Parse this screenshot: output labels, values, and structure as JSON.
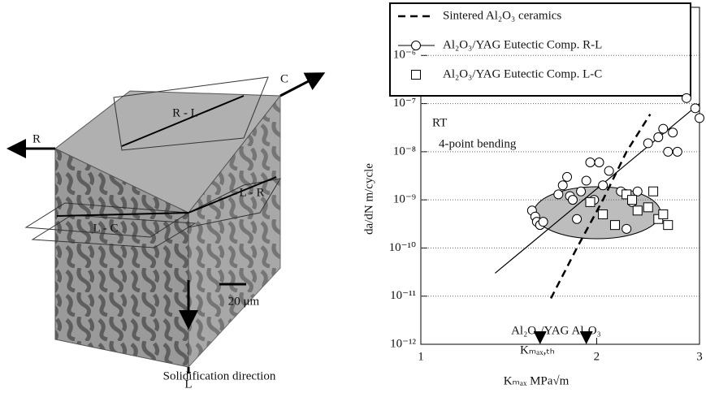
{
  "chart_data": {
    "type": "scatter",
    "xlabel": "Kₘₐₓ MPa√m",
    "ylabel": "da/dN    m/cycle",
    "log_x": true,
    "log_y": true,
    "xlim": [
      1,
      3
    ],
    "ylim": [
      1e-12,
      1e-05
    ],
    "xticks": [
      1,
      2,
      3
    ],
    "yticks": [
      {
        "value": 1e-12,
        "label": "10⁻¹²"
      },
      {
        "value": 1e-11,
        "label": "10⁻¹¹"
      },
      {
        "value": 1e-10,
        "label": "10⁻¹⁰"
      },
      {
        "value": 1e-09,
        "label": "10⁻⁹"
      },
      {
        "value": 1e-08,
        "label": "10⁻⁸"
      },
      {
        "value": 1e-07,
        "label": "10⁻⁷"
      },
      {
        "value": 1e-06,
        "label": "10⁻⁶"
      }
    ],
    "grid": "y",
    "legend": "top",
    "series": [
      {
        "name": "Sintered Al₂O₃ ceramics",
        "style": "dashed",
        "color": "#000000",
        "x": [
          1.67,
          1.85,
          2.05,
          2.25,
          2.47
        ],
        "values": [
          9e-12,
          1e-10,
          1e-09,
          1e-08,
          6e-08
        ]
      },
      {
        "name": "Al₂O₃/YAG  Eutectic  Comp. R-L",
        "style": "circle",
        "color": "#000000",
        "x": [
          1.55,
          1.57,
          1.58,
          1.6,
          1.62,
          1.72,
          1.75,
          1.78,
          1.8,
          1.82,
          1.85,
          1.88,
          1.92,
          1.95,
          1.98,
          2.02,
          2.05,
          2.1,
          2.2,
          2.25,
          2.3,
          2.35,
          2.45,
          2.55,
          2.6,
          2.65,
          2.7,
          2.75,
          2.85,
          2.95,
          3.0
        ],
        "values": [
          6e-10,
          4.5e-10,
          3.5e-10,
          3e-10,
          3.5e-10,
          1.3e-09,
          2e-09,
          3e-09,
          1.2e-09,
          1e-09,
          4e-10,
          1.5e-09,
          2.5e-09,
          6e-09,
          1e-09,
          6e-09,
          2e-09,
          4e-09,
          1.5e-09,
          2.5e-10,
          9e-10,
          1.5e-09,
          1.5e-08,
          2e-08,
          3e-08,
          1e-08,
          2.5e-08,
          1e-08,
          1.3e-07,
          8e-08,
          5e-08
        ],
        "line_x": [
          1.34,
          3.0
        ],
        "line_values": [
          3e-11,
          1e-07
        ]
      },
      {
        "name": "Al₂O₃/YAG  Eutectic  Comp. L-C",
        "style": "square",
        "color": "#000000",
        "x": [
          1.95,
          2.05,
          2.15,
          2.25,
          2.3,
          2.35,
          2.45,
          2.5,
          2.55,
          2.6,
          2.65
        ],
        "values": [
          9e-10,
          5e-10,
          3e-10,
          1.3e-09,
          1e-09,
          6e-10,
          7e-10,
          1.5e-09,
          4e-10,
          5e-10,
          3e-10
        ]
      }
    ],
    "annotations": [
      {
        "text": "RT"
      },
      {
        "text": "4-point bending"
      },
      {
        "text": "Kₘₐₓ,ₜₕ"
      }
    ],
    "arrows": [
      {
        "text": "Al₂O₃/YAG",
        "x": 1.6
      },
      {
        "text": "Al₂O₃",
        "x": 1.92
      }
    ]
  },
  "diagram": {
    "labels": [
      "R",
      "C",
      "L",
      "R - L",
      "L - R",
      "L - C",
      "20 μm",
      "Solidification direction"
    ]
  }
}
